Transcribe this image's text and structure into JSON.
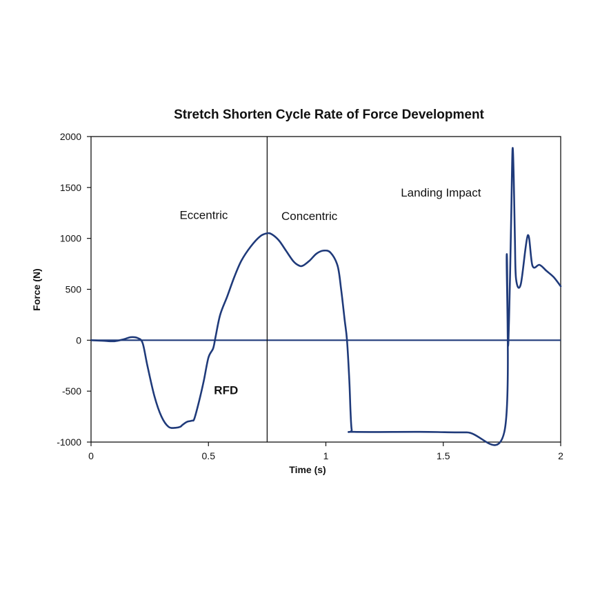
{
  "chart_data": {
    "type": "line",
    "title": "Stretch Shorten Cycle Rate of Force Development",
    "xlabel": "Time (s)",
    "ylabel": "Force (N)",
    "xlim": [
      0,
      2
    ],
    "ylim": [
      -1000,
      2000
    ],
    "xticks": [
      0,
      0.5,
      1,
      1.5,
      2
    ],
    "xtick_labels": [
      "0",
      "0.5",
      "1",
      "1.5",
      "2"
    ],
    "yticks": [
      -1000,
      -500,
      0,
      500,
      1000,
      1500,
      2000
    ],
    "ytick_labels": [
      "-1000",
      "-500",
      "0",
      "500",
      "1000",
      "1500",
      "2000"
    ],
    "grid": false,
    "line_color": "#1f3a7a",
    "reference_lines": [
      {
        "orientation": "horizontal",
        "y": 0
      },
      {
        "orientation": "vertical",
        "x": 0.75
      }
    ],
    "annotations": [
      {
        "text": "Eccentric",
        "x": 0.48,
        "y": 1190,
        "bold": false
      },
      {
        "text": "Concentric",
        "x": 0.93,
        "y": 1180,
        "bold": false
      },
      {
        "text": "Landing Impact",
        "x": 1.49,
        "y": 1410,
        "bold": false
      },
      {
        "text": "RFD",
        "x": 0.575,
        "y": -530,
        "bold": true
      }
    ],
    "series": [
      {
        "x": [
          0,
          0.05,
          0.1,
          0.14,
          0.17,
          0.2,
          0.22,
          0.24,
          0.27,
          0.3,
          0.33,
          0.36,
          0.38,
          0.39,
          0.41,
          0.43,
          0.44,
          0.46,
          0.48,
          0.5,
          0.52,
          0.53,
          0.55,
          0.58,
          0.61,
          0.64,
          0.68,
          0.72,
          0.75,
          0.77,
          0.8,
          0.83,
          0.86,
          0.88,
          0.9,
          0.93,
          0.96,
          0.99,
          1.02,
          1.05,
          1.065,
          1.08,
          1.09,
          1.1,
          1.105,
          1.11,
          1.12,
          1.4,
          1.6,
          1.76,
          1.77,
          1.775,
          1.78,
          1.785,
          1.79,
          1.795,
          1.8,
          1.805,
          1.81,
          1.83,
          1.86,
          1.88,
          1.91,
          1.94,
          1.97,
          2.0
        ],
        "y": [
          0,
          -5,
          -10,
          10,
          30,
          20,
          -30,
          -250,
          -550,
          -750,
          -850,
          -860,
          -850,
          -830,
          -800,
          -790,
          -770,
          -600,
          -400,
          -170,
          -80,
          30,
          250,
          430,
          620,
          780,
          920,
          1020,
          1050,
          1040,
          980,
          880,
          780,
          740,
          730,
          780,
          850,
          880,
          860,
          730,
          500,
          200,
          0,
          -400,
          -700,
          -880,
          -900,
          -900,
          -905,
          -900,
          830,
          -30,
          200,
          700,
          1300,
          1880,
          1600,
          1000,
          600,
          550,
          1030,
          730,
          740,
          680,
          620,
          530
        ]
      }
    ]
  }
}
